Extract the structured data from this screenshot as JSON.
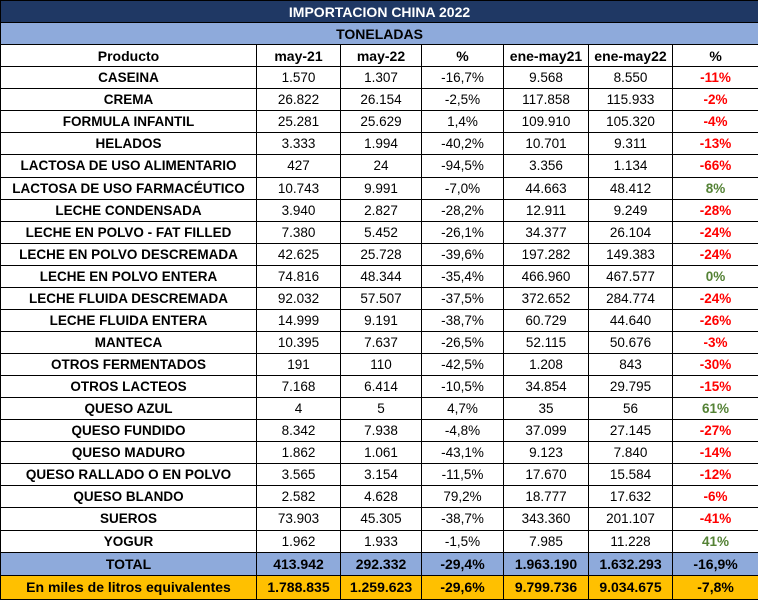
{
  "table": {
    "title": "IMPORTACION CHINA 2022",
    "subtitle": "TONELADAS",
    "header": [
      "Producto",
      "may-21",
      "may-22",
      "%",
      "ene-may21",
      "ene-may22",
      "%"
    ],
    "rows": [
      [
        "CASEINA",
        "1.570",
        "1.307",
        "-16,7%",
        "9.568",
        "8.550",
        "-11%"
      ],
      [
        "CREMA",
        "26.822",
        "26.154",
        "-2,5%",
        "117.858",
        "115.933",
        "-2%"
      ],
      [
        "FORMULA INFANTIL",
        "25.281",
        "25.629",
        "1,4%",
        "109.910",
        "105.320",
        "-4%"
      ],
      [
        "HELADOS",
        "3.333",
        "1.994",
        "-40,2%",
        "10.701",
        "9.311",
        "-13%"
      ],
      [
        "LACTOSA DE USO ALIMENTARIO",
        "427",
        "24",
        "-94,5%",
        "3.356",
        "1.134",
        "-66%"
      ],
      [
        "LACTOSA DE USO FARMACÉUTICO",
        "10.743",
        "9.991",
        "-7,0%",
        "44.663",
        "48.412",
        "8%"
      ],
      [
        "LECHE CONDENSADA",
        "3.940",
        "2.827",
        "-28,2%",
        "12.911",
        "9.249",
        "-28%"
      ],
      [
        "LECHE EN POLVO - FAT FILLED",
        "7.380",
        "5.452",
        "-26,1%",
        "34.377",
        "26.104",
        "-24%"
      ],
      [
        "LECHE EN POLVO DESCREMADA",
        "42.625",
        "25.728",
        "-39,6%",
        "197.282",
        "149.383",
        "-24%"
      ],
      [
        "LECHE EN POLVO ENTERA",
        "74.816",
        "48.344",
        "-35,4%",
        "466.960",
        "467.577",
        "0%"
      ],
      [
        "LECHE FLUIDA DESCREMADA",
        "92.032",
        "57.507",
        "-37,5%",
        "372.652",
        "284.774",
        "-24%"
      ],
      [
        "LECHE FLUIDA ENTERA",
        "14.999",
        "9.191",
        "-38,7%",
        "60.729",
        "44.640",
        "-26%"
      ],
      [
        "MANTECA",
        "10.395",
        "7.637",
        "-26,5%",
        "52.115",
        "50.676",
        "-3%"
      ],
      [
        "OTROS FERMENTADOS",
        "191",
        "110",
        "-42,5%",
        "1.208",
        "843",
        "-30%"
      ],
      [
        "OTROS LACTEOS",
        "7.168",
        "6.414",
        "-10,5%",
        "34.854",
        "29.795",
        "-15%"
      ],
      [
        "QUESO AZUL",
        "4",
        "5",
        "4,7%",
        "35",
        "56",
        "61%"
      ],
      [
        "QUESO FUNDIDO",
        "8.342",
        "7.938",
        "-4,8%",
        "37.099",
        "27.145",
        "-27%"
      ],
      [
        "QUESO MADURO",
        "1.862",
        "1.061",
        "-43,1%",
        "9.123",
        "7.840",
        "-14%"
      ],
      [
        "QUESO RALLADO O EN POLVO",
        "3.565",
        "3.154",
        "-11,5%",
        "17.670",
        "15.584",
        "-12%"
      ],
      [
        "QUESO BLANDO",
        "2.582",
        "4.628",
        "79,2%",
        "18.777",
        "17.632",
        "-6%"
      ],
      [
        "SUEROS",
        "73.903",
        "45.305",
        "-38,7%",
        "343.360",
        "201.107",
        "-41%"
      ],
      [
        "YOGUR",
        "1.962",
        "1.933",
        "-1,5%",
        "7.985",
        "11.228",
        "41%"
      ]
    ],
    "total": [
      "TOTAL",
      "413.942",
      "292.332",
      "-29,4%",
      "1.963.190",
      "1.632.293",
      "-16,9%"
    ],
    "equivalents": [
      "En miles de litros equivalentes",
      "1.788.835",
      "1.259.623",
      "-29,6%",
      "9.799.736",
      "9.034.675",
      "-7,8%"
    ]
  }
}
